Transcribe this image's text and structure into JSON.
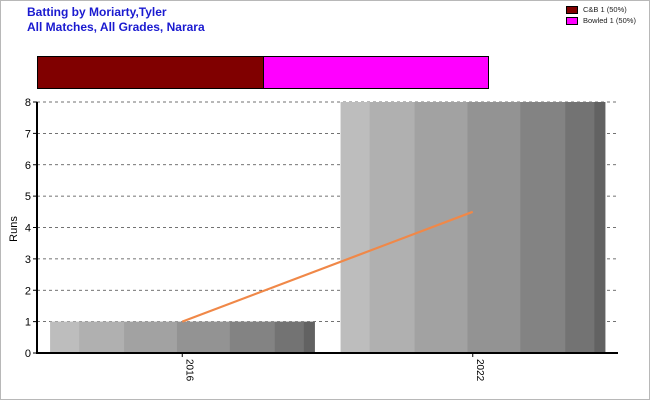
{
  "chart_data": {
    "type": "bar",
    "title": "Batting by Moriarty,Tyler",
    "subtitle": "All Matches, All Grades, Narara",
    "categories": [
      "2016",
      "2022"
    ],
    "values": [
      1,
      8
    ],
    "trend": {
      "type": "line",
      "values": [
        1,
        4.5
      ],
      "color": "#f08848"
    },
    "ylabel": "Runs",
    "ylim": [
      0,
      8
    ],
    "yticks": [
      "0",
      "1",
      "2",
      "3",
      "4",
      "5",
      "6",
      "7",
      "8"
    ],
    "grid": true,
    "legend": {
      "placement": "top-right",
      "entries": [
        {
          "label": "C&B 1 (50%)",
          "color": "#800000",
          "share": 0.5
        },
        {
          "label": "Bowled 1 (50%)",
          "color": "#ff00ff",
          "share": 0.5
        }
      ]
    }
  },
  "colors": {
    "title": "#1a1ad0",
    "trend": "#f08848"
  }
}
